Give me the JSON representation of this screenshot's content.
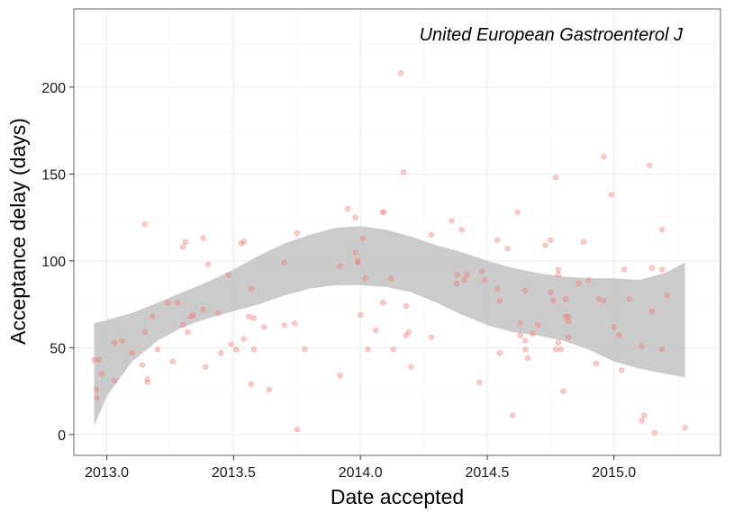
{
  "chart_data": {
    "type": "scatter",
    "title": "",
    "annotation": "United European Gastroenterol J",
    "xlabel": "Date accepted",
    "ylabel": "Acceptance delay (days)",
    "xlim": [
      2012.87,
      2015.42
    ],
    "ylim": [
      -12,
      245
    ],
    "x_ticks": [
      2013.0,
      2013.5,
      2014.0,
      2014.5,
      2015.0
    ],
    "x_tick_labels": [
      "2013.0",
      "2013.5",
      "2014.0",
      "2014.5",
      "2015.0"
    ],
    "y_ticks": [
      0,
      50,
      100,
      150,
      200
    ],
    "y_tick_labels": [
      "0",
      "50",
      "100",
      "150",
      "200"
    ],
    "grid": true,
    "colors": {
      "points": "#f8766d",
      "band": "#c8c8c8",
      "panel_border": "#7f7f7f",
      "grid": "#ebebeb"
    },
    "points": [
      {
        "x": 2012.95,
        "y": 43
      },
      {
        "x": 2012.96,
        "y": 26
      },
      {
        "x": 2012.96,
        "y": 21
      },
      {
        "x": 2012.97,
        "y": 43
      },
      {
        "x": 2012.98,
        "y": 35
      },
      {
        "x": 2013.03,
        "y": 53
      },
      {
        "x": 2013.03,
        "y": 31
      },
      {
        "x": 2013.06,
        "y": 54
      },
      {
        "x": 2013.1,
        "y": 47
      },
      {
        "x": 2013.14,
        "y": 40
      },
      {
        "x": 2013.15,
        "y": 121
      },
      {
        "x": 2013.15,
        "y": 59
      },
      {
        "x": 2013.16,
        "y": 32
      },
      {
        "x": 2013.16,
        "y": 30
      },
      {
        "x": 2013.18,
        "y": 68
      },
      {
        "x": 2013.2,
        "y": 49
      },
      {
        "x": 2013.24,
        "y": 76
      },
      {
        "x": 2013.26,
        "y": 42
      },
      {
        "x": 2013.28,
        "y": 76
      },
      {
        "x": 2013.3,
        "y": 63
      },
      {
        "x": 2013.3,
        "y": 108
      },
      {
        "x": 2013.31,
        "y": 111
      },
      {
        "x": 2013.32,
        "y": 59
      },
      {
        "x": 2013.33,
        "y": 68
      },
      {
        "x": 2013.34,
        "y": 69
      },
      {
        "x": 2013.38,
        "y": 113
      },
      {
        "x": 2013.38,
        "y": 72
      },
      {
        "x": 2013.39,
        "y": 39
      },
      {
        "x": 2013.4,
        "y": 98
      },
      {
        "x": 2013.44,
        "y": 70
      },
      {
        "x": 2013.45,
        "y": 47
      },
      {
        "x": 2013.48,
        "y": 92
      },
      {
        "x": 2013.49,
        "y": 52
      },
      {
        "x": 2013.51,
        "y": 49
      },
      {
        "x": 2013.53,
        "y": 110
      },
      {
        "x": 2013.54,
        "y": 111
      },
      {
        "x": 2013.54,
        "y": 55
      },
      {
        "x": 2013.56,
        "y": 68
      },
      {
        "x": 2013.57,
        "y": 84
      },
      {
        "x": 2013.57,
        "y": 29
      },
      {
        "x": 2013.58,
        "y": 67
      },
      {
        "x": 2013.58,
        "y": 49
      },
      {
        "x": 2013.62,
        "y": 62
      },
      {
        "x": 2013.64,
        "y": 26
      },
      {
        "x": 2013.7,
        "y": 99
      },
      {
        "x": 2013.7,
        "y": 63
      },
      {
        "x": 2013.74,
        "y": 64
      },
      {
        "x": 2013.75,
        "y": 116
      },
      {
        "x": 2013.75,
        "y": 3
      },
      {
        "x": 2013.78,
        "y": 49
      },
      {
        "x": 2013.92,
        "y": 97
      },
      {
        "x": 2013.92,
        "y": 34
      },
      {
        "x": 2013.95,
        "y": 130
      },
      {
        "x": 2013.98,
        "y": 105
      },
      {
        "x": 2013.98,
        "y": 125
      },
      {
        "x": 2013.99,
        "y": 99
      },
      {
        "x": 2013.99,
        "y": 100
      },
      {
        "x": 2014.0,
        "y": 69
      },
      {
        "x": 2014.01,
        "y": 113
      },
      {
        "x": 2014.02,
        "y": 90
      },
      {
        "x": 2014.03,
        "y": 49
      },
      {
        "x": 2014.06,
        "y": 60
      },
      {
        "x": 2014.09,
        "y": 128
      },
      {
        "x": 2014.09,
        "y": 128
      },
      {
        "x": 2014.09,
        "y": 76
      },
      {
        "x": 2014.12,
        "y": 90
      },
      {
        "x": 2014.13,
        "y": 49
      },
      {
        "x": 2014.16,
        "y": 208
      },
      {
        "x": 2014.17,
        "y": 151
      },
      {
        "x": 2014.18,
        "y": 74
      },
      {
        "x": 2014.18,
        "y": 57
      },
      {
        "x": 2014.19,
        "y": 59
      },
      {
        "x": 2014.2,
        "y": 39
      },
      {
        "x": 2014.28,
        "y": 115
      },
      {
        "x": 2014.28,
        "y": 56
      },
      {
        "x": 2014.36,
        "y": 123
      },
      {
        "x": 2014.38,
        "y": 92
      },
      {
        "x": 2014.38,
        "y": 87
      },
      {
        "x": 2014.4,
        "y": 118
      },
      {
        "x": 2014.41,
        "y": 89
      },
      {
        "x": 2014.42,
        "y": 92
      },
      {
        "x": 2014.47,
        "y": 30
      },
      {
        "x": 2014.48,
        "y": 94
      },
      {
        "x": 2014.49,
        "y": 89
      },
      {
        "x": 2014.54,
        "y": 112
      },
      {
        "x": 2014.54,
        "y": 84
      },
      {
        "x": 2014.55,
        "y": 47
      },
      {
        "x": 2014.55,
        "y": 77
      },
      {
        "x": 2014.58,
        "y": 107
      },
      {
        "x": 2014.6,
        "y": 11
      },
      {
        "x": 2014.62,
        "y": 128
      },
      {
        "x": 2014.63,
        "y": 64
      },
      {
        "x": 2014.63,
        "y": 57
      },
      {
        "x": 2014.65,
        "y": 54
      },
      {
        "x": 2014.65,
        "y": 83
      },
      {
        "x": 2014.65,
        "y": 49
      },
      {
        "x": 2014.66,
        "y": 44
      },
      {
        "x": 2014.68,
        "y": 58
      },
      {
        "x": 2014.7,
        "y": 63
      },
      {
        "x": 2014.73,
        "y": 109
      },
      {
        "x": 2014.75,
        "y": 112
      },
      {
        "x": 2014.75,
        "y": 82
      },
      {
        "x": 2014.76,
        "y": 77
      },
      {
        "x": 2014.77,
        "y": 148
      },
      {
        "x": 2014.77,
        "y": 49
      },
      {
        "x": 2014.78,
        "y": 53
      },
      {
        "x": 2014.78,
        "y": 95
      },
      {
        "x": 2014.78,
        "y": 92
      },
      {
        "x": 2014.79,
        "y": 49
      },
      {
        "x": 2014.8,
        "y": 25
      },
      {
        "x": 2014.81,
        "y": 68
      },
      {
        "x": 2014.81,
        "y": 78
      },
      {
        "x": 2014.82,
        "y": 56
      },
      {
        "x": 2014.82,
        "y": 68
      },
      {
        "x": 2014.82,
        "y": 65
      },
      {
        "x": 2014.86,
        "y": 87
      },
      {
        "x": 2014.88,
        "y": 111
      },
      {
        "x": 2014.9,
        "y": 89
      },
      {
        "x": 2014.93,
        "y": 41
      },
      {
        "x": 2014.94,
        "y": 78
      },
      {
        "x": 2014.96,
        "y": 77
      },
      {
        "x": 2014.96,
        "y": 160
      },
      {
        "x": 2014.99,
        "y": 138
      },
      {
        "x": 2015.0,
        "y": 62
      },
      {
        "x": 2015.02,
        "y": 57
      },
      {
        "x": 2015.03,
        "y": 37
      },
      {
        "x": 2015.04,
        "y": 95
      },
      {
        "x": 2015.06,
        "y": 78
      },
      {
        "x": 2015.11,
        "y": 51
      },
      {
        "x": 2015.11,
        "y": 8
      },
      {
        "x": 2015.12,
        "y": 11
      },
      {
        "x": 2015.14,
        "y": 155
      },
      {
        "x": 2015.15,
        "y": 71
      },
      {
        "x": 2015.15,
        "y": 96
      },
      {
        "x": 2015.16,
        "y": 1
      },
      {
        "x": 2015.19,
        "y": 49
      },
      {
        "x": 2015.19,
        "y": 118
      },
      {
        "x": 2015.19,
        "y": 95
      },
      {
        "x": 2015.21,
        "y": 80
      },
      {
        "x": 2015.28,
        "y": 4
      }
    ],
    "smooth_band": {
      "x": [
        2012.95,
        2013.0,
        2013.1,
        2013.2,
        2013.3,
        2013.4,
        2013.5,
        2013.6,
        2013.7,
        2013.8,
        2013.9,
        2014.0,
        2014.1,
        2014.2,
        2014.3,
        2014.4,
        2014.5,
        2014.6,
        2014.7,
        2014.8,
        2014.9,
        2015.0,
        2015.1,
        2015.2,
        2015.28
      ],
      "upper": [
        64,
        66,
        70,
        76,
        82,
        88,
        95,
        103,
        110,
        115,
        119,
        120,
        118,
        114,
        109,
        105,
        100,
        96,
        93,
        91,
        90,
        90,
        89,
        93,
        99
      ],
      "lower": [
        5,
        22,
        42,
        54,
        62,
        67,
        71,
        75,
        80,
        84,
        86,
        86,
        85,
        82,
        76,
        69,
        63,
        59,
        57,
        54,
        49,
        42,
        38,
        35,
        33
      ]
    }
  }
}
